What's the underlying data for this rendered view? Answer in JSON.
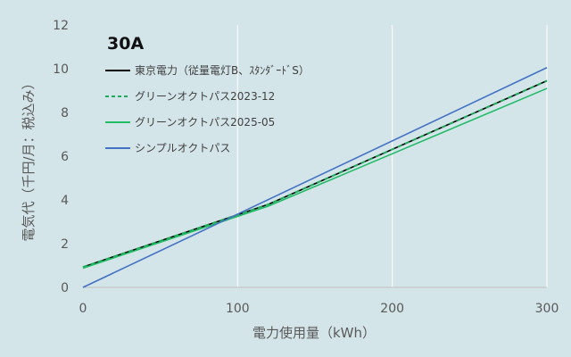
{
  "chart_data": {
    "type": "line",
    "title": "30A",
    "xlabel": "電力使用量（kWh）",
    "ylabel": "電気代（千円/月：税込み）",
    "xlim": [
      0,
      300
    ],
    "ylim": [
      0,
      12
    ],
    "xticks": [
      0,
      100,
      200,
      300
    ],
    "yticks": [
      0,
      2,
      4,
      6,
      8,
      10,
      12
    ],
    "grid": "vertical",
    "legend_position": "top-left",
    "series": [
      {
        "name": "東京電力（従量電灯B、ｽﾀﾝﾀﾞｰﾄﾞS）",
        "color": "#000000",
        "dash": "solid",
        "x": [
          0,
          120,
          300
        ],
        "y": [
          0.93,
          3.8,
          9.45
        ]
      },
      {
        "name": "グリーンオクトパス2023-12",
        "color": "#1eaa5a",
        "dash": "dashed",
        "x": [
          0,
          120,
          300
        ],
        "y": [
          0.93,
          3.8,
          9.45
        ]
      },
      {
        "name": "グリーンオクトパス2025-05",
        "color": "#22bb66",
        "dash": "solid",
        "x": [
          0,
          120,
          300
        ],
        "y": [
          0.88,
          3.72,
          9.1
        ]
      },
      {
        "name": "シンプルオクトパス",
        "color": "#4472c4",
        "dash": "solid",
        "x": [
          0,
          300
        ],
        "y": [
          0,
          10.05
        ]
      }
    ]
  }
}
